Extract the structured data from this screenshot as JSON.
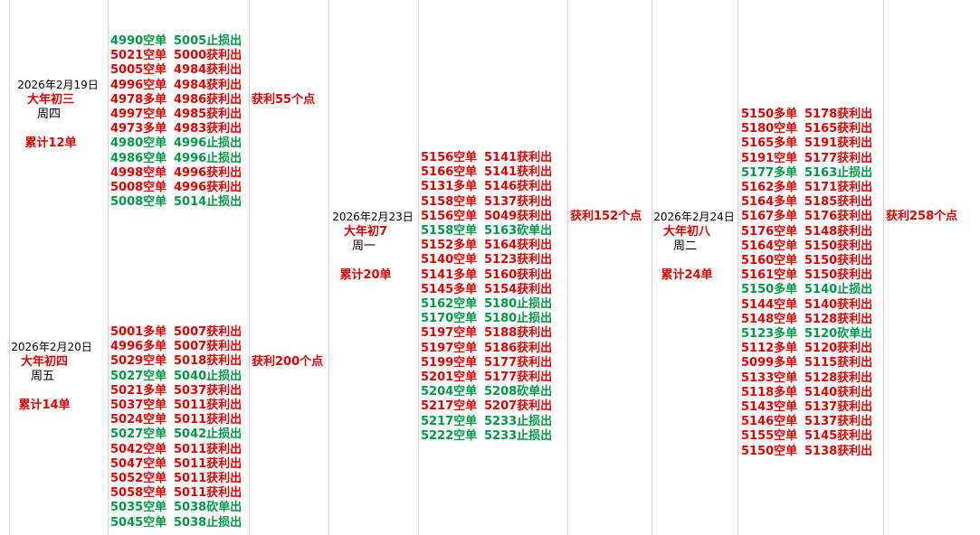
{
  "days": [
    {
      "date": "2026年2月19日",
      "lunar": "大年初三",
      "weekday": "周四",
      "total": "累计12单",
      "profit": "获利55个点",
      "trades": [
        {
          "open": "4990空单",
          "close": "5005止损出",
          "color": "#009944"
        },
        {
          "open": "5021空单",
          "close": "5000获利出",
          "color": "#e60000"
        },
        {
          "open": "5005空单",
          "close": "4984获利出",
          "color": "#e60000"
        },
        {
          "open": "4996空单",
          "close": "4984获利出",
          "color": "#e60000"
        },
        {
          "open": "4978多单",
          "close": "4986获利出",
          "color": "#e60000"
        },
        {
          "open": "4997空单",
          "close": "4985获利出",
          "color": "#e60000"
        },
        {
          "open": "4973多单",
          "close": "4983获利出",
          "color": "#e60000"
        },
        {
          "open": "4980空单",
          "close": "4996止损出",
          "color": "#009944"
        },
        {
          "open": "4986空单",
          "close": "4996止损出",
          "color": "#009944"
        },
        {
          "open": "4998空单",
          "close": "4996获利出",
          "color": "#e60000"
        },
        {
          "open": "5008空单",
          "close": "4996获利出",
          "color": "#e60000"
        },
        {
          "open": "5008空单",
          "close": "5014止损出",
          "color": "#009944"
        }
      ]
    },
    {
      "date": "2026年2月20日",
      "lunar": "大年初四",
      "weekday": "周五",
      "total": "累计14单",
      "profit": "获利200个点",
      "trades": [
        {
          "open": "5001多单",
          "close": "5007获利出",
          "color": "#e60000"
        },
        {
          "open": "4996多单",
          "close": "5007获利出",
          "color": "#e60000"
        },
        {
          "open": "5029空单",
          "close": "5018获利出",
          "color": "#e60000"
        },
        {
          "open": "5027空单",
          "close": "5040止损出",
          "color": "#009944"
        },
        {
          "open": "5021多单",
          "close": "5037获利出",
          "color": "#e60000"
        },
        {
          "open": "5037空单",
          "close": "5011获利出",
          "color": "#e60000"
        },
        {
          "open": "5024空单",
          "close": "5011获利出",
          "color": "#e60000"
        },
        {
          "open": "5027空单",
          "close": "5042止损出",
          "color": "#009944"
        },
        {
          "open": "5042空单",
          "close": "5011获利出",
          "color": "#e60000"
        },
        {
          "open": "5047空单",
          "close": "5011获利出",
          "color": "#e60000"
        },
        {
          "open": "5052空单",
          "close": "5011获利出",
          "color": "#e60000"
        },
        {
          "open": "5058空单",
          "close": "5011获利出",
          "color": "#e60000"
        },
        {
          "open": "5035空单",
          "close": "5038砍单出",
          "color": "#009944"
        },
        {
          "open": "5045空单",
          "close": "5038止损出",
          "color": "#009944"
        }
      ]
    },
    {
      "date": "2026年2月23日",
      "lunar": "大年初7",
      "weekday": "周一",
      "total": "累计20单",
      "profit": "获利152个点",
      "trades": [
        {
          "open": "5156空单",
          "close": "5141获利出",
          "color": "#e60000"
        },
        {
          "open": "5166空单",
          "close": "5141获利出",
          "color": "#e60000"
        },
        {
          "open": "5131多单",
          "close": "5146获利出",
          "color": "#e60000"
        },
        {
          "open": "5158空单",
          "close": "5137获利出",
          "color": "#e60000"
        },
        {
          "open": "5156空单",
          "close": "5049获利出",
          "color": "#e60000"
        },
        {
          "open": "5158空单",
          "close": "5163砍单出",
          "color": "#009944"
        },
        {
          "open": "5152多单",
          "close": "5164获利出",
          "color": "#e60000"
        },
        {
          "open": "5140空单",
          "close": "5123获利出",
          "color": "#e60000"
        },
        {
          "open": "5141多单",
          "close": "5160获利出",
          "color": "#e60000"
        },
        {
          "open": "5145多单",
          "close": "5154获利出",
          "color": "#e60000"
        },
        {
          "open": "5162空单",
          "close": "5180止损出",
          "color": "#009944"
        },
        {
          "open": "5170空单",
          "close": "5180止损出",
          "color": "#009944"
        },
        {
          "open": "5197空单",
          "close": "5188获利出",
          "color": "#e60000"
        },
        {
          "open": "5197空单",
          "close": "5186获利出",
          "color": "#e60000"
        },
        {
          "open": "5199空单",
          "close": "5177获利出",
          "color": "#e60000"
        },
        {
          "open": "5201空单",
          "close": "5177获利出",
          "color": "#e60000"
        },
        {
          "open": "5204空单",
          "close": "5208砍单出",
          "color": "#009944"
        },
        {
          "open": "5217空单",
          "close": "5207获利出",
          "color": "#e60000"
        },
        {
          "open": "5217空单",
          "close": "5233止损出",
          "color": "#009944"
        },
        {
          "open": "5222空单",
          "close": "5233止损出",
          "color": "#009944"
        }
      ]
    },
    {
      "date": "2026年2月24日",
      "lunar": "大年初八",
      "weekday": "周二",
      "total": "累计24单",
      "profit": "获利258个点",
      "trades": [
        {
          "open": "5150多单",
          "close": "5178获利出",
          "color": "#e60000"
        },
        {
          "open": "5180空单",
          "close": "5165获利出",
          "color": "#e60000"
        },
        {
          "open": "5165多单",
          "close": "5191获利出",
          "color": "#e60000"
        },
        {
          "open": "5191空单",
          "close": "5177获利出",
          "color": "#e60000"
        },
        {
          "open": "5177多单",
          "close": "5163止损出",
          "color": "#009944"
        },
        {
          "open": "5162多单",
          "close": "5171获利出",
          "color": "#e60000"
        },
        {
          "open": "5164多单",
          "close": "5185获利出",
          "color": "#e60000"
        },
        {
          "open": "5167多单",
          "close": "5176获利出",
          "color": "#e60000"
        },
        {
          "open": "5176空单",
          "close": "5148获利出",
          "color": "#e60000"
        },
        {
          "open": "5164空单",
          "close": "5150获利出",
          "color": "#e60000"
        },
        {
          "open": "5160空单",
          "close": "5150获利出",
          "color": "#e60000"
        },
        {
          "open": "5161空单",
          "close": "5150获利出",
          "color": "#e60000"
        },
        {
          "open": "5150多单",
          "close": "5140止损出",
          "color": "#009944"
        },
        {
          "open": "5144空单",
          "close": "5140获利出",
          "color": "#e60000"
        },
        {
          "open": "5148空单",
          "close": "5128获利出",
          "color": "#e60000"
        },
        {
          "open": "5123多单",
          "close": "5120砍单出",
          "color": "#009944"
        },
        {
          "open": "5112多单",
          "close": "5120获利出",
          "color": "#e60000"
        },
        {
          "open": "5099多单",
          "close": "5115获利出",
          "color": "#e60000"
        },
        {
          "open": "5133空单",
          "close": "5128获利出",
          "color": "#e60000"
        },
        {
          "open": "5118多单",
          "close": "5140获利出",
          "color": "#e60000"
        },
        {
          "open": "5143空单",
          "close": "5137获利出",
          "color": "#e60000"
        },
        {
          "open": "5146空单",
          "close": "5137获利出",
          "color": "#e60000"
        },
        {
          "open": "5155空单",
          "close": "5145获利出",
          "color": "#e60000"
        },
        {
          "open": "5150空单",
          "close": "5138获利出",
          "color": "#e60000"
        }
      ]
    }
  ]
}
